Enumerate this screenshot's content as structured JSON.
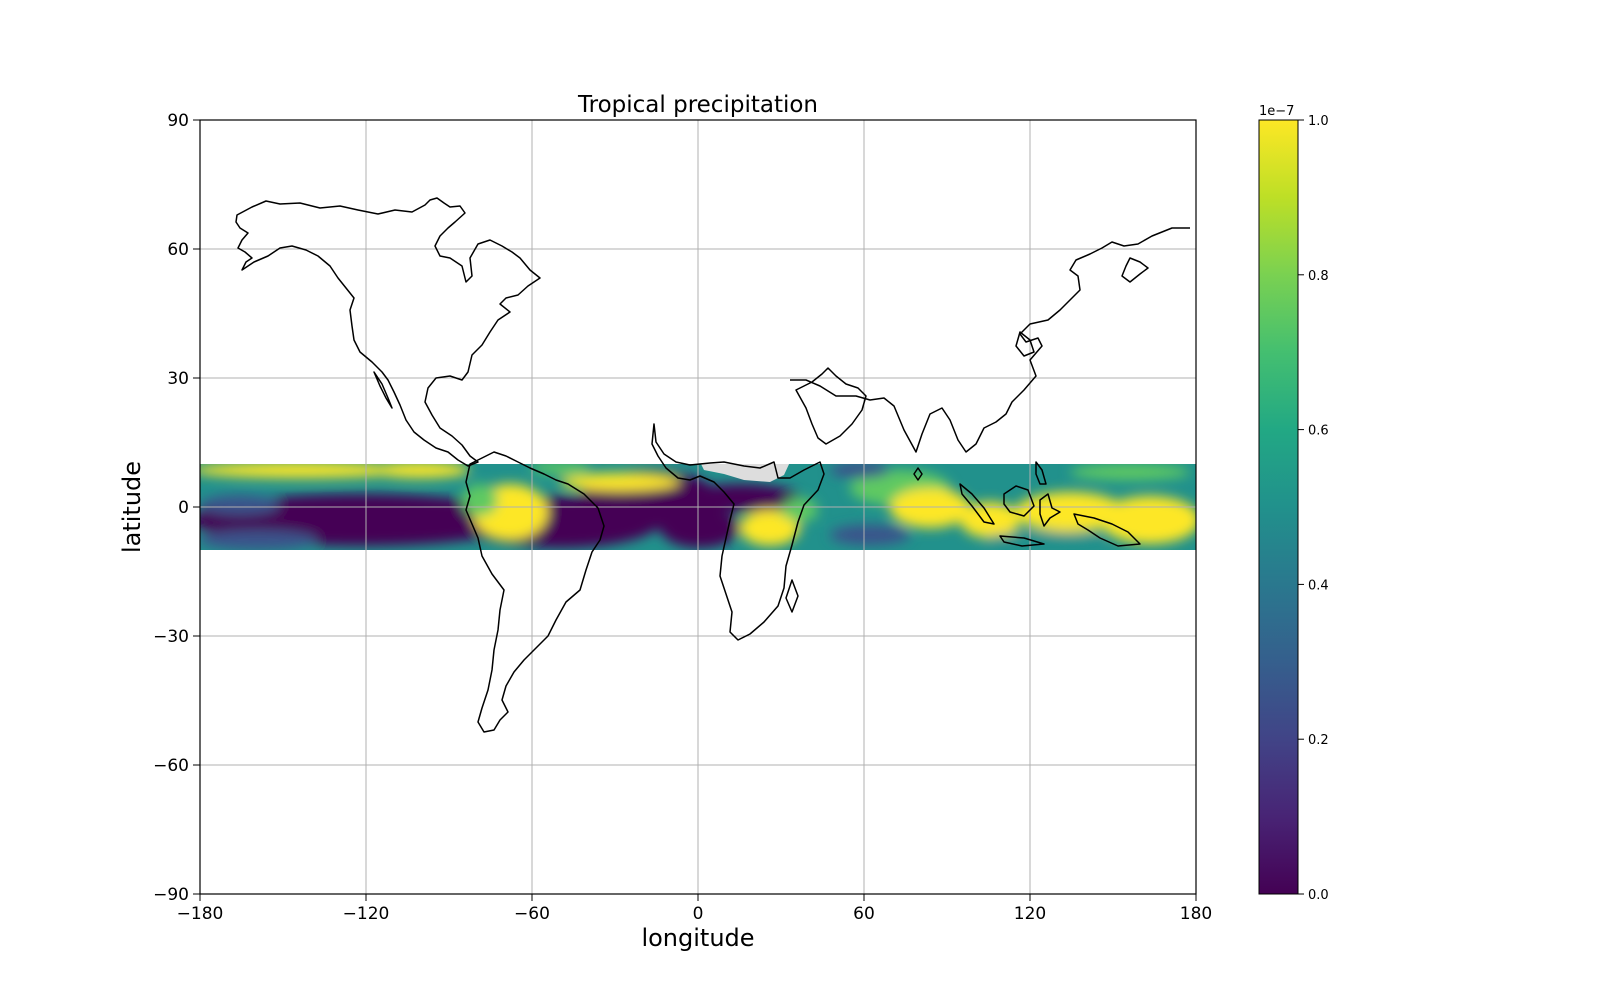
{
  "chart_data": {
    "type": "heatmap",
    "title": "Tropical precipitation",
    "xlabel": "longitude",
    "ylabel": "latitude",
    "xlim": [
      -180,
      180
    ],
    "ylim": [
      -90,
      90
    ],
    "x_ticks": [
      -180,
      -120,
      -60,
      0,
      60,
      120,
      180
    ],
    "y_ticks": [
      90,
      60,
      30,
      0,
      -30,
      -60,
      -90
    ],
    "x_tick_labels": [
      "−180",
      "−120",
      "−60",
      "0",
      "60",
      "120",
      "180"
    ],
    "y_tick_labels": [
      "90",
      "60",
      "30",
      "0",
      "−30",
      "−60",
      "−90"
    ],
    "grid": true,
    "band_lat_range": [
      -10,
      10
    ],
    "colormap": "viridis",
    "colorbar": {
      "range": [
        0.0,
        1.0
      ],
      "multiplier_label": "1e−7",
      "ticks": [
        0.0,
        0.2,
        0.4,
        0.6,
        0.8,
        1.0
      ],
      "tick_labels": [
        "0.0",
        "0.2",
        "0.4",
        "0.6",
        "0.8",
        "1.0"
      ]
    },
    "colors": {
      "viridis_low": "#440154",
      "viridis_q1": "#3b528b",
      "viridis_mid": "#21918c",
      "viridis_q3": "#5ec962",
      "viridis_high": "#fde725",
      "missing": "#dddddd",
      "grid": "#b0b0b0",
      "coastline": "#000000"
    }
  }
}
